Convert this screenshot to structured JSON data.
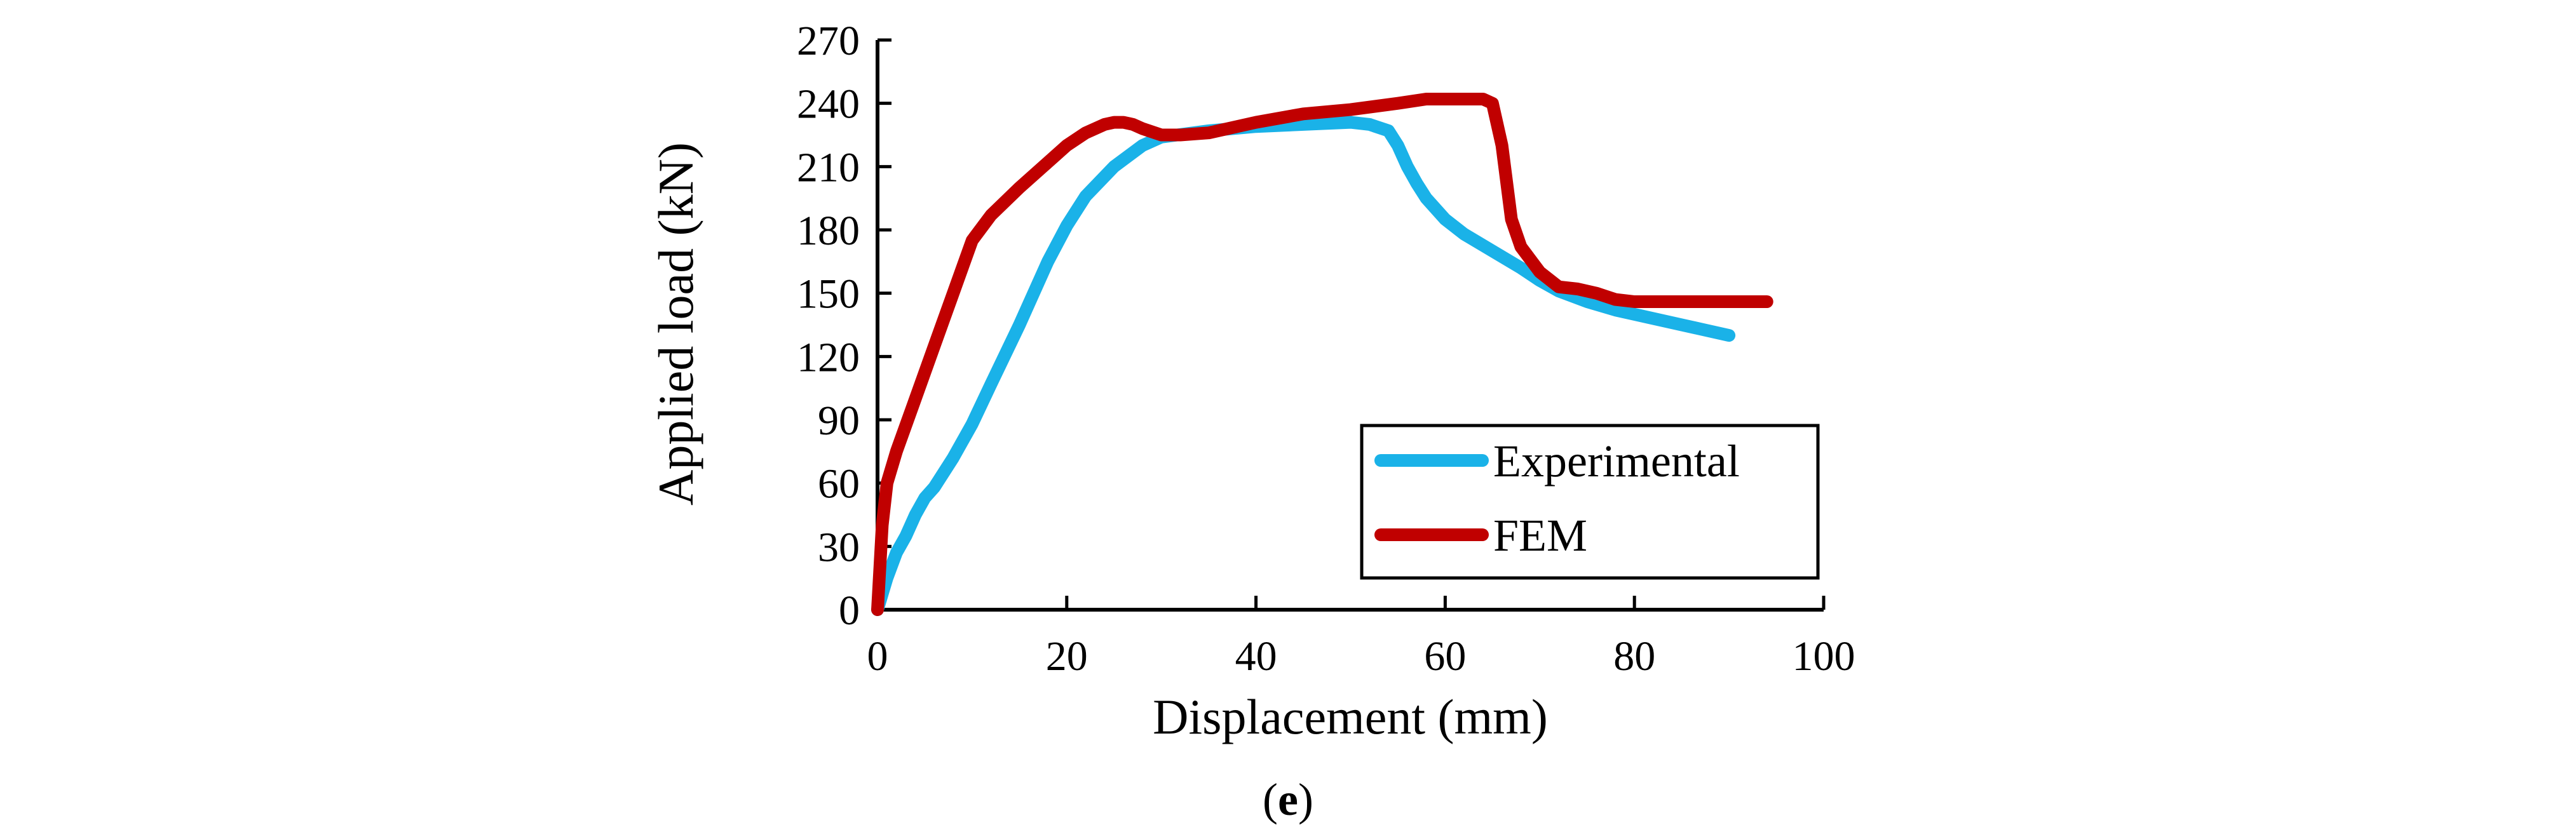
{
  "chart_data": {
    "type": "line",
    "xlabel": "Displacement (mm)",
    "ylabel": "Applied load (kN)",
    "xlim": [
      0,
      100
    ],
    "ylim": [
      0,
      270
    ],
    "xticks": [
      0,
      20,
      40,
      60,
      80,
      100
    ],
    "yticks": [
      0,
      30,
      60,
      90,
      120,
      150,
      180,
      210,
      240,
      270
    ],
    "grid": false,
    "legend_position": "lower-right",
    "series": [
      {
        "name": "Experimental",
        "color": "#1ab2e8",
        "x": [
          0,
          1,
          2,
          3,
          4,
          5,
          6,
          8,
          10,
          12,
          15,
          18,
          20,
          22,
          25,
          28,
          30,
          35,
          40,
          45,
          50,
          52,
          54,
          55,
          56,
          57,
          58,
          60,
          62,
          65,
          68,
          70,
          72,
          75,
          78,
          80,
          85,
          90
        ],
        "values": [
          0,
          15,
          27,
          35,
          45,
          53,
          58,
          72,
          88,
          107,
          135,
          165,
          182,
          196,
          210,
          220,
          224,
          227,
          229,
          230,
          231,
          230,
          227,
          220,
          210,
          202,
          195,
          185,
          178,
          170,
          162,
          156,
          151,
          146,
          142,
          140,
          135,
          130
        ]
      },
      {
        "name": "FEM",
        "color": "#c00000",
        "x": [
          0,
          0.5,
          1,
          2,
          4,
          6,
          8,
          10,
          12,
          15,
          18,
          20,
          22,
          24,
          25,
          26,
          27,
          28,
          30,
          32,
          35,
          40,
          45,
          50,
          55,
          58,
          60,
          62,
          63,
          64,
          65,
          66,
          67,
          68,
          70,
          72,
          74,
          76,
          78,
          80,
          85,
          90,
          94
        ],
        "values": [
          0,
          40,
          60,
          75,
          100,
          125,
          150,
          175,
          187,
          200,
          212,
          220,
          226,
          230,
          231,
          231,
          230,
          228,
          225,
          225,
          226,
          231,
          235,
          237,
          240,
          242,
          242,
          242,
          242,
          242,
          240,
          220,
          185,
          172,
          160,
          153,
          152,
          150,
          147,
          146,
          146,
          146,
          146
        ]
      }
    ]
  },
  "caption": {
    "open": "(",
    "letter": "e",
    "close": ")"
  }
}
